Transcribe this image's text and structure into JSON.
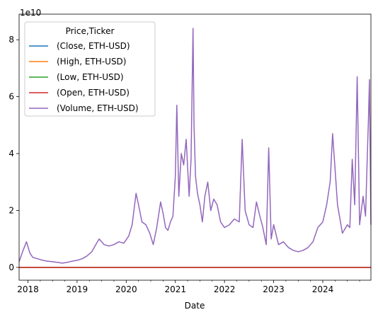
{
  "chart_data": {
    "type": "line",
    "xlabel": "Date",
    "ylabel": "",
    "offset_text": "1e10",
    "ylim": [
      -0.45,
      8.9
    ],
    "xlim": [
      2017.82,
      2024.98
    ],
    "y_ticks": [
      0,
      2,
      4,
      6,
      8
    ],
    "y_tick_labels": [
      "0",
      "2",
      "4",
      "6",
      "8"
    ],
    "x_ticks": [
      2018,
      2019,
      2020,
      2021,
      2022,
      2023,
      2024
    ],
    "x_tick_labels": [
      "2018",
      "2019",
      "2020",
      "2021",
      "2022",
      "2023",
      "2024"
    ],
    "grid": false,
    "legend": {
      "title": "Price,Ticker",
      "placement": "top-left",
      "entries": [
        {
          "label": "(Close, ETH-USD)",
          "color": "#1f77b4"
        },
        {
          "label": "(High, ETH-USD)",
          "color": "#ff7f0e"
        },
        {
          "label": "(Low, ETH-USD)",
          "color": "#2ca02c"
        },
        {
          "label": "(Open, ETH-USD)",
          "color": "#d62728"
        },
        {
          "label": "(Volume, ETH-USD)",
          "color": "#9467bd"
        }
      ]
    },
    "series": [
      {
        "name": "(Close, ETH-USD)",
        "color": "#1f77b4",
        "x": [
          2017.82,
          2024.98
        ],
        "values": [
          0,
          0
        ]
      },
      {
        "name": "(High, ETH-USD)",
        "color": "#ff7f0e",
        "x": [
          2017.82,
          2024.98
        ],
        "values": [
          0,
          0
        ]
      },
      {
        "name": "(Low, ETH-USD)",
        "color": "#2ca02c",
        "x": [
          2017.82,
          2024.98
        ],
        "values": [
          0,
          0
        ]
      },
      {
        "name": "(Open, ETH-USD)",
        "color": "#d62728",
        "x": [
          2017.82,
          2024.98
        ],
        "values": [
          0,
          0
        ]
      },
      {
        "name": "(Volume, ETH-USD)",
        "color": "#9467bd",
        "x": [
          2017.82,
          2017.9,
          2017.97,
          2018.04,
          2018.1,
          2018.2,
          2018.3,
          2018.4,
          2018.5,
          2018.6,
          2018.7,
          2018.8,
          2018.9,
          2019.0,
          2019.1,
          2019.2,
          2019.3,
          2019.38,
          2019.45,
          2019.55,
          2019.65,
          2019.75,
          2019.85,
          2019.95,
          2020.05,
          2020.12,
          2020.2,
          2020.25,
          2020.32,
          2020.4,
          2020.48,
          2020.55,
          2020.62,
          2020.7,
          2020.75,
          2020.8,
          2020.85,
          2020.9,
          2020.95,
          2021.0,
          2021.03,
          2021.07,
          2021.12,
          2021.17,
          2021.22,
          2021.28,
          2021.32,
          2021.36,
          2021.38,
          2021.41,
          2021.45,
          2021.5,
          2021.55,
          2021.6,
          2021.66,
          2021.72,
          2021.78,
          2021.85,
          2021.92,
          2022.0,
          2022.1,
          2022.2,
          2022.3,
          2022.36,
          2022.42,
          2022.5,
          2022.58,
          2022.65,
          2022.72,
          2022.78,
          2022.85,
          2022.9,
          2022.95,
          2023.0,
          2023.1,
          2023.2,
          2023.3,
          2023.4,
          2023.5,
          2023.6,
          2023.7,
          2023.8,
          2023.9,
          2024.0,
          2024.08,
          2024.15,
          2024.2,
          2024.3,
          2024.4,
          2024.5,
          2024.55,
          2024.6,
          2024.65,
          2024.7,
          2024.75,
          2024.82,
          2024.87,
          2024.9,
          2024.93,
          2024.95,
          2024.98
        ],
        "values": [
          0.2,
          0.6,
          0.9,
          0.5,
          0.35,
          0.3,
          0.25,
          0.22,
          0.2,
          0.18,
          0.15,
          0.18,
          0.22,
          0.25,
          0.3,
          0.4,
          0.55,
          0.8,
          1.0,
          0.8,
          0.75,
          0.8,
          0.9,
          0.85,
          1.1,
          1.5,
          2.6,
          2.2,
          1.6,
          1.5,
          1.2,
          0.8,
          1.4,
          2.3,
          1.9,
          1.4,
          1.3,
          1.6,
          1.8,
          3.2,
          5.7,
          2.5,
          4.0,
          3.6,
          4.5,
          2.5,
          3.8,
          8.4,
          5.0,
          3.2,
          2.6,
          2.2,
          1.6,
          2.5,
          3.0,
          2.0,
          2.4,
          2.2,
          1.6,
          1.4,
          1.5,
          1.7,
          1.6,
          4.5,
          2.0,
          1.5,
          1.4,
          2.3,
          1.8,
          1.4,
          0.8,
          4.2,
          1.0,
          1.5,
          0.8,
          0.9,
          0.7,
          0.6,
          0.55,
          0.6,
          0.7,
          0.9,
          1.4,
          1.6,
          2.2,
          3.0,
          4.7,
          2.2,
          1.2,
          1.5,
          1.4,
          3.8,
          2.2,
          6.7,
          1.5,
          2.5,
          1.8,
          3.5,
          5.2,
          6.6,
          1.5
        ]
      }
    ]
  }
}
